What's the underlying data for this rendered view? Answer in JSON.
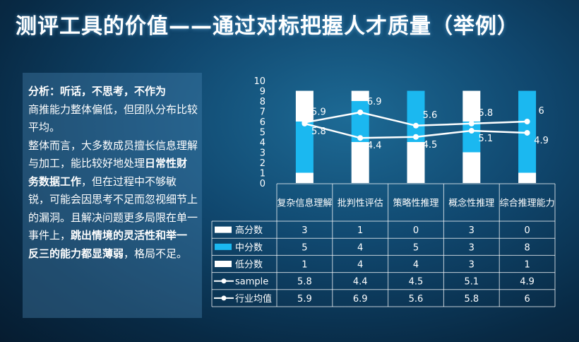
{
  "title": "测评工具的价值——通过对标把握人才质量（举例）",
  "analysis": {
    "heading": "分析：听话，不思考，不作为",
    "p1": "商推能力整体偏低，但团队分布比较平均。",
    "p2a": "整体而言，大多数成员擅长信息理解与加工，能比较好地处理",
    "p2b": "日常性财务数据工作",
    "p2c": "，但在过程中不够敏锐，可能会因思考不足而忽视细节上的漏洞。且解决问题更多局限在单一事件上，",
    "p2d": "跳出情境的灵活性和举一反三的能力都显薄弱",
    "p2e": "，格局不足。"
  },
  "colors": {
    "high": "#ffffff",
    "mid": "#1bb8f0",
    "low": "#ffffff",
    "line": "#ffffff"
  },
  "chart_data": {
    "type": "bar",
    "stacked": true,
    "categories": [
      "复杂信息理解",
      "批判性评估",
      "策略性推理",
      "概念性推理",
      "综合推理能力"
    ],
    "ylim": [
      0,
      10
    ],
    "yticks": [
      0,
      1,
      2,
      3,
      4,
      5,
      6,
      7,
      8,
      9,
      10
    ],
    "series": [
      {
        "name": "低分数",
        "type": "bar",
        "values": [
          1,
          4,
          4,
          3,
          1
        ]
      },
      {
        "name": "中分数",
        "type": "bar",
        "values": [
          5,
          4,
          5,
          3,
          8
        ]
      },
      {
        "name": "高分数",
        "type": "bar",
        "values": [
          3,
          1,
          0,
          3,
          0
        ]
      },
      {
        "name": "sample",
        "type": "line",
        "values": [
          5.8,
          4.4,
          4.5,
          5.1,
          4.9
        ]
      },
      {
        "name": "行业均值",
        "type": "line",
        "values": [
          5.9,
          6.9,
          5.6,
          5.8,
          6
        ]
      }
    ],
    "table_rows": [
      "高分数",
      "中分数",
      "低分数",
      "sample",
      "行业均值"
    ]
  }
}
